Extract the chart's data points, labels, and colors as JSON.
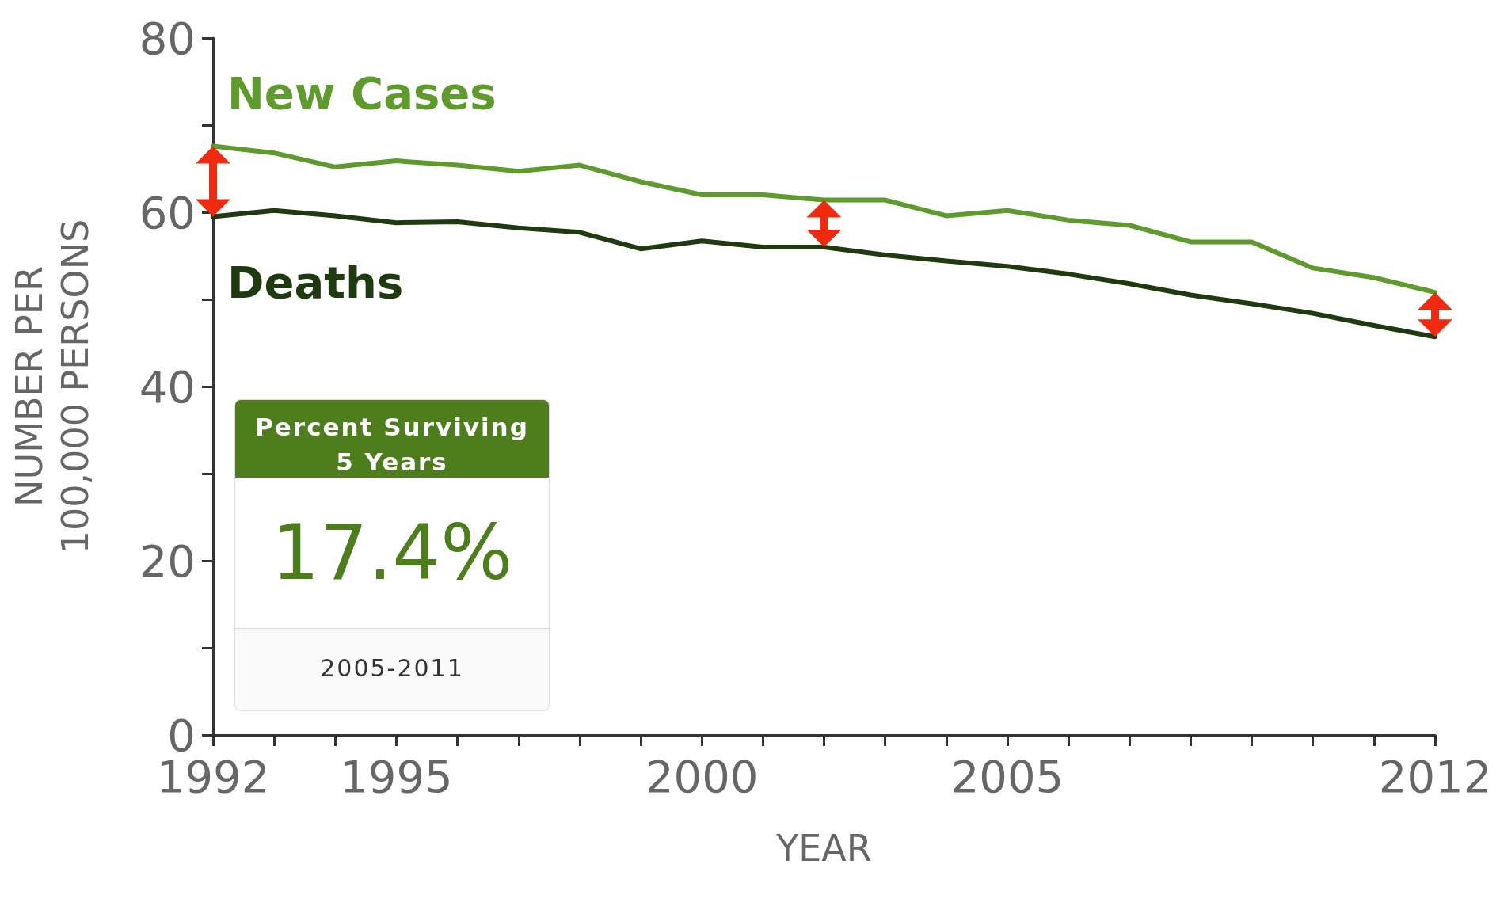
{
  "chart_data": {
    "type": "line",
    "xlabel": "YEAR",
    "ylabel": "NUMBER PER\n100,000 PERSONS",
    "x": [
      1992,
      1993,
      1994,
      1995,
      1996,
      1997,
      1998,
      1999,
      2000,
      2001,
      2002,
      2003,
      2004,
      2005,
      2006,
      2007,
      2008,
      2009,
      2010,
      2011,
      2012
    ],
    "series": [
      {
        "name": "New Cases",
        "color": "#5e9a2c",
        "values": [
          67.6,
          66.8,
          65.2,
          65.9,
          65.4,
          64.7,
          65.4,
          63.5,
          62.0,
          62.0,
          61.4,
          61.4,
          59.6,
          60.2,
          59.1,
          58.5,
          56.6,
          56.6,
          53.6,
          52.5,
          50.8
        ]
      },
      {
        "name": "Deaths",
        "color": "#1f3a10",
        "values": [
          59.5,
          60.2,
          59.6,
          58.8,
          58.9,
          58.2,
          57.7,
          55.8,
          56.7,
          56.0,
          56.0,
          55.1,
          54.4,
          53.8,
          52.9,
          51.8,
          50.5,
          49.5,
          48.4,
          47.0,
          45.7
        ]
      }
    ],
    "xlim": [
      1992,
      2012
    ],
    "xticks": [
      1992,
      {
        "value": 1993,
        "label": null
      },
      {
        "value": 1994,
        "label": null
      },
      1995,
      {
        "value": 1996,
        "label": null
      },
      {
        "value": 1997,
        "label": null
      },
      {
        "value": 1998,
        "label": null
      },
      {
        "value": 1999,
        "label": null
      },
      2000,
      {
        "value": 2001,
        "label": null
      },
      {
        "value": 2002,
        "label": null
      },
      {
        "value": 2003,
        "label": null
      },
      {
        "value": 2004,
        "label": null
      },
      2005,
      {
        "value": 2006,
        "label": null
      },
      {
        "value": 2007,
        "label": null
      },
      {
        "value": 2008,
        "label": null
      },
      {
        "value": 2009,
        "label": null
      },
      {
        "value": 2010,
        "label": null
      },
      {
        "value": 2011,
        "label": null
      },
      2012
    ],
    "ylim": [
      0,
      80
    ],
    "yticks": [
      0,
      {
        "value": 10,
        "label": null
      },
      20,
      {
        "value": 30,
        "label": null
      },
      40,
      {
        "value": 50,
        "label": null
      },
      60,
      {
        "value": 70,
        "label": null
      },
      80
    ],
    "grid": false,
    "legend": false,
    "marker": "none",
    "line_style": "solid",
    "annotations": [
      "Percent Surviving 5 Years",
      "17.4%",
      "2005-2011"
    ]
  }
}
